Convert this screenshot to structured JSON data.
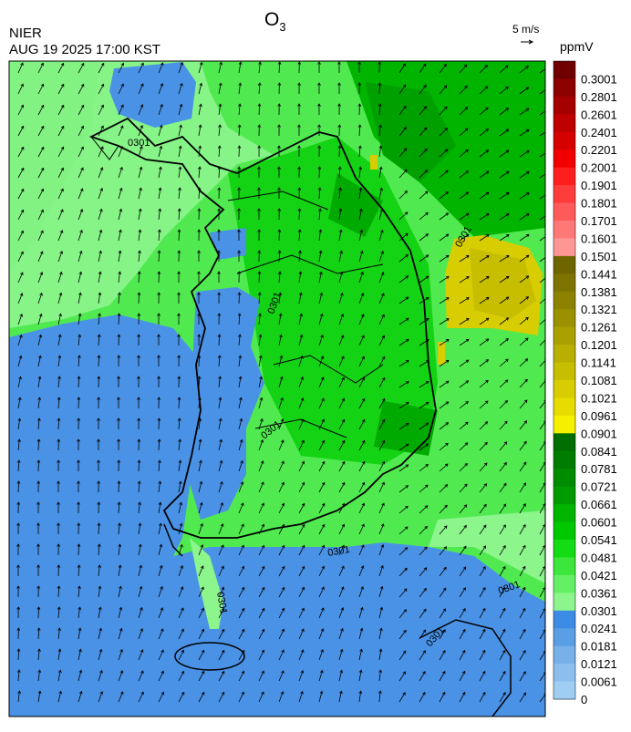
{
  "header": {
    "agency": "NIER",
    "datetime": "AUG 19 2025 17:00 KST",
    "title": "O",
    "title_subscript": "3",
    "wind_scale": "5 m/s",
    "unit": "ppmV"
  },
  "contour_labels": [
    "0301",
    "0301",
    "0301",
    "0301",
    "0301",
    "0301",
    "0301",
    "0301"
  ],
  "legend": {
    "levels": [
      0.3001,
      0.2801,
      0.2601,
      0.2401,
      0.2201,
      0.2001,
      0.1901,
      0.1801,
      0.1701,
      0.1601,
      0.1501,
      0.1441,
      0.1381,
      0.1321,
      0.1261,
      0.1201,
      0.1141,
      0.1081,
      0.1021,
      0.0961,
      0.0901,
      0.0841,
      0.0781,
      0.0721,
      0.0661,
      0.0601,
      0.0541,
      0.0481,
      0.0421,
      0.0361,
      0.0301,
      0.0241,
      0.0181,
      0.0121,
      0.0061,
      0
    ],
    "colors": [
      "#700000",
      "#8c0000",
      "#a50000",
      "#be0000",
      "#d70000",
      "#f00000",
      "#ff1e1e",
      "#ff3c3c",
      "#ff5a5a",
      "#ff7878",
      "#ff9696",
      "#6e6400",
      "#7d7300",
      "#8c8200",
      "#9b9100",
      "#aaa000",
      "#b9af00",
      "#c8be00",
      "#d7cd00",
      "#e6dc00",
      "#f5f000",
      "#006e00",
      "#007d00",
      "#008c00",
      "#009b00",
      "#00b400",
      "#00c800",
      "#14dc14",
      "#3ce63c",
      "#64f064",
      "#8cf58c",
      "#3c8ce6",
      "#5a9ee6",
      "#78b0ea",
      "#8cbfee",
      "#a0cdf2"
    ]
  }
}
